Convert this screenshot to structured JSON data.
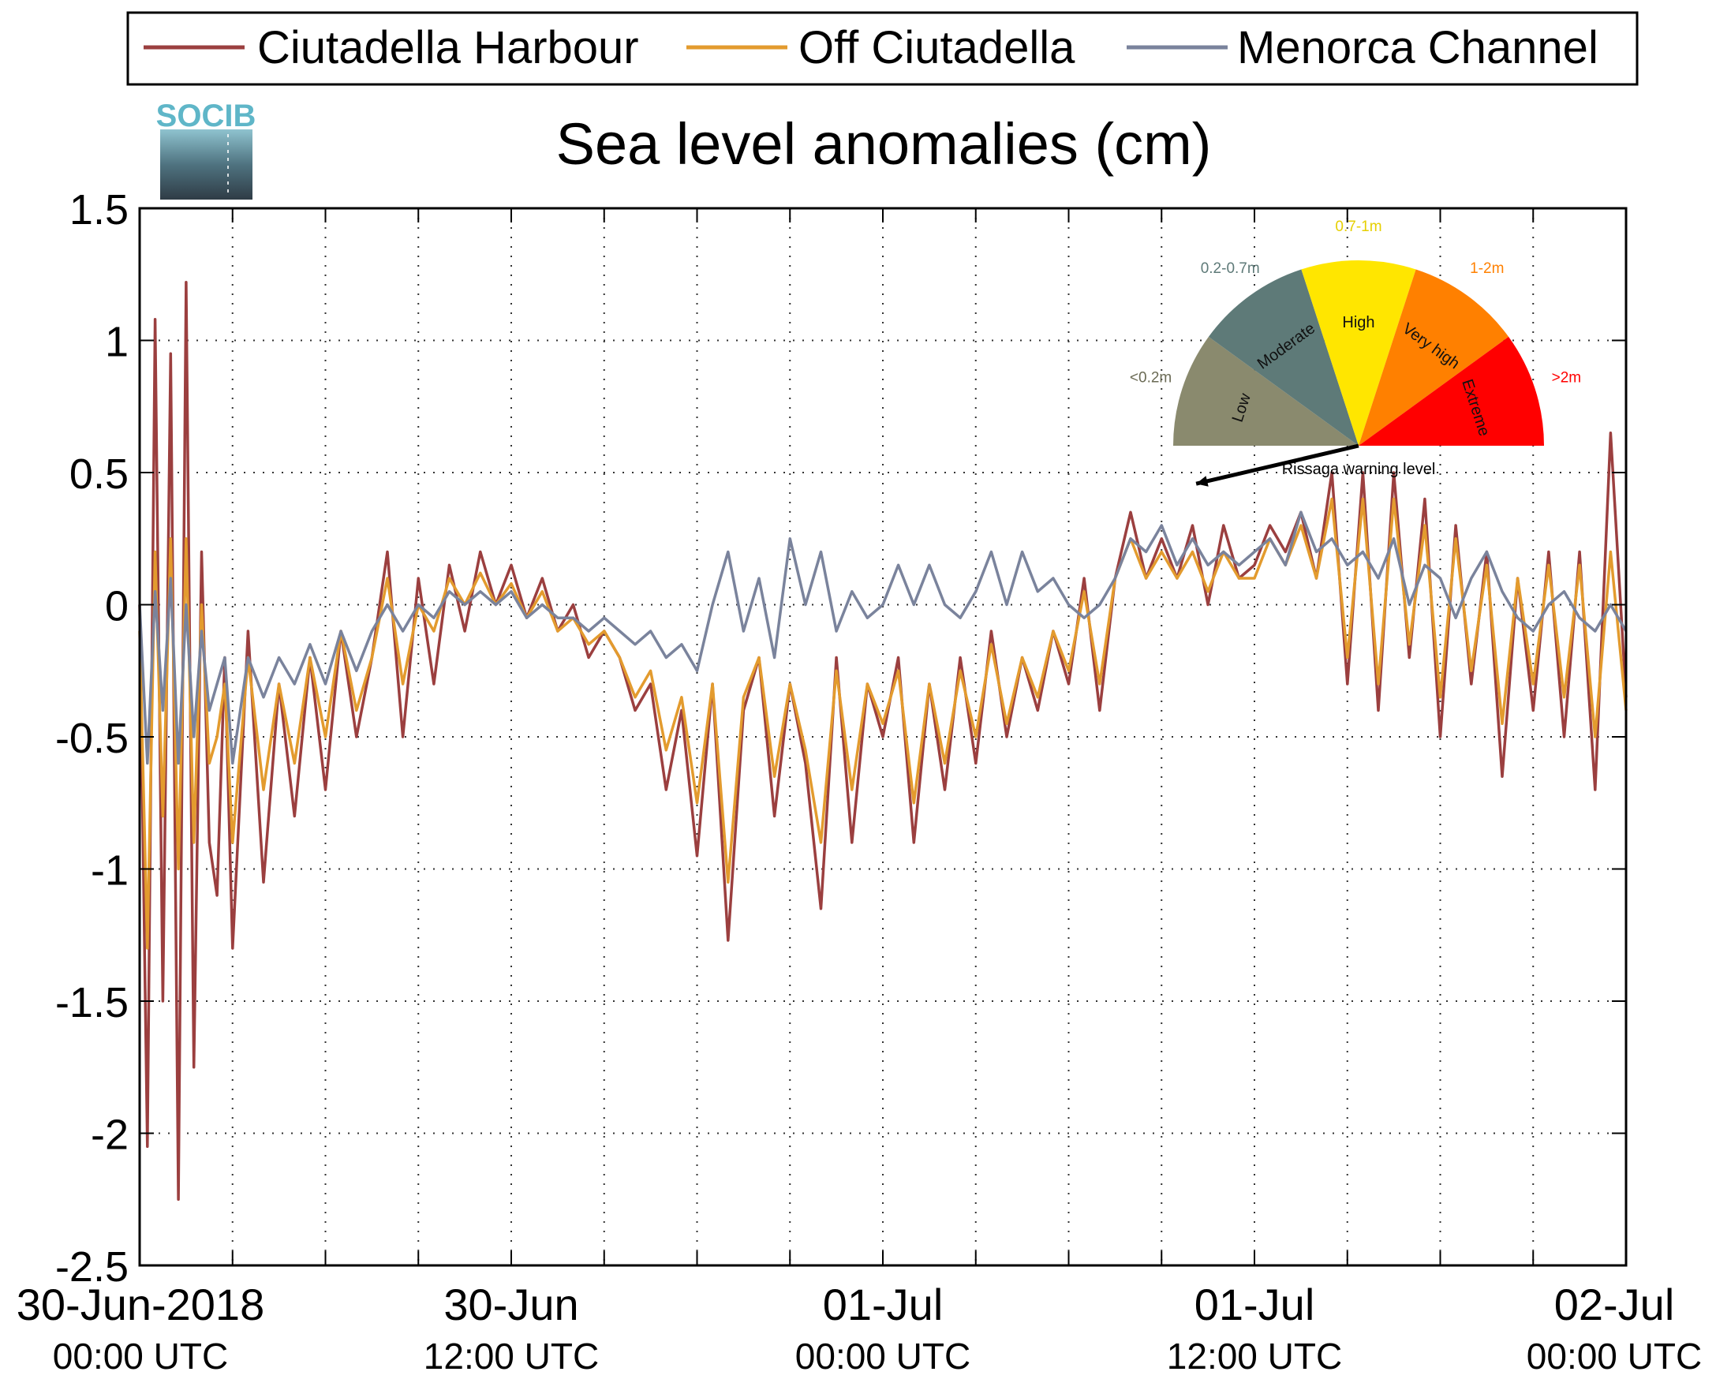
{
  "chart_data": {
    "type": "line",
    "title": "Sea level anomalies (cm)",
    "xlabel": "",
    "ylabel": "",
    "ylim": [
      -2.5,
      1.5
    ],
    "xlim_hours": [
      0,
      48
    ],
    "grid": true,
    "legend_position": "top",
    "yticks": [
      {
        "value": 1.5,
        "label": "1.5"
      },
      {
        "value": 1,
        "label": "1"
      },
      {
        "value": 0.5,
        "label": "0.5"
      },
      {
        "value": 0,
        "label": "0"
      },
      {
        "value": -0.5,
        "label": "-0.5"
      },
      {
        "value": -1,
        "label": "-1"
      },
      {
        "value": -1.5,
        "label": "-1.5"
      },
      {
        "value": -2,
        "label": "-2"
      },
      {
        "value": -2.5,
        "label": "-2.5"
      }
    ],
    "xticks": [
      {
        "hour": 0,
        "label": "30-Jun-2018",
        "sublabel": "00:00 UTC"
      },
      {
        "hour": 12,
        "label": "30-Jun",
        "sublabel": "12:00 UTC"
      },
      {
        "hour": 24,
        "label": "01-Jul",
        "sublabel": "00:00 UTC"
      },
      {
        "hour": 36,
        "label": "01-Jul",
        "sublabel": "12:00 UTC"
      },
      {
        "hour": 48,
        "label": "02-Jul",
        "sublabel": "00:00 UTC"
      }
    ],
    "x_grid_hours": [
      3,
      6,
      9,
      12,
      15,
      18,
      21,
      24,
      27,
      30,
      33,
      36,
      39,
      42,
      45
    ],
    "series": [
      {
        "name": "Ciutadella Harbour",
        "color": "#9b3f3f",
        "x": [
          0,
          0.25,
          0.5,
          0.75,
          1,
          1.25,
          1.5,
          1.75,
          2,
          2.25,
          2.5,
          2.75,
          3,
          3.5,
          4,
          4.5,
          5,
          5.5,
          6,
          6.5,
          7,
          7.5,
          8,
          8.5,
          9,
          9.5,
          10,
          10.5,
          11,
          11.5,
          12,
          12.5,
          13,
          13.5,
          14,
          14.5,
          15,
          15.5,
          16,
          16.5,
          17,
          17.5,
          18,
          18.5,
          19,
          19.5,
          20,
          20.5,
          21,
          21.5,
          22,
          22.5,
          23,
          23.5,
          24,
          24.5,
          25,
          25.5,
          26,
          26.5,
          27,
          27.5,
          28,
          28.5,
          29,
          29.5,
          30,
          30.5,
          31,
          31.5,
          32,
          32.5,
          33,
          33.5,
          34,
          34.5,
          35,
          35.5,
          36,
          36.5,
          37,
          37.5,
          38,
          38.5,
          39,
          39.5,
          40,
          40.5,
          41,
          41.5,
          42,
          42.5,
          43,
          43.5,
          44,
          44.5,
          45,
          45.5,
          46,
          46.5,
          47,
          47.5,
          48
        ],
        "values": [
          0,
          -2.05,
          1.08,
          -1.5,
          0.95,
          -2.25,
          1.22,
          -1.75,
          0.2,
          -0.9,
          -1.1,
          -0.2,
          -1.3,
          -0.1,
          -1.05,
          -0.3,
          -0.8,
          -0.2,
          -0.7,
          -0.1,
          -0.5,
          -0.2,
          0.2,
          -0.5,
          0.1,
          -0.3,
          0.15,
          -0.1,
          0.2,
          0.0,
          0.15,
          -0.05,
          0.1,
          -0.1,
          0.0,
          -0.2,
          -0.1,
          -0.2,
          -0.4,
          -0.3,
          -0.7,
          -0.4,
          -0.95,
          -0.3,
          -1.27,
          -0.4,
          -0.2,
          -0.8,
          -0.3,
          -0.6,
          -1.15,
          -0.2,
          -0.9,
          -0.3,
          -0.5,
          -0.2,
          -0.9,
          -0.3,
          -0.7,
          -0.2,
          -0.6,
          -0.1,
          -0.5,
          -0.2,
          -0.4,
          -0.1,
          -0.3,
          0.1,
          -0.4,
          0.1,
          0.35,
          0.1,
          0.25,
          0.1,
          0.3,
          0.0,
          0.3,
          0.1,
          0.15,
          0.3,
          0.2,
          0.35,
          0.1,
          0.5,
          -0.3,
          0.5,
          -0.4,
          0.5,
          -0.2,
          0.4,
          -0.5,
          0.3,
          -0.3,
          0.2,
          -0.65,
          0.1,
          -0.4,
          0.2,
          -0.5,
          0.2,
          -0.7,
          0.65,
          -0.35
        ]
      },
      {
        "name": "Off Ciutadella",
        "color": "#e39b2e",
        "x": [
          0,
          0.25,
          0.5,
          0.75,
          1,
          1.25,
          1.5,
          1.75,
          2,
          2.25,
          2.5,
          2.75,
          3,
          3.5,
          4,
          4.5,
          5,
          5.5,
          6,
          6.5,
          7,
          7.5,
          8,
          8.5,
          9,
          9.5,
          10,
          10.5,
          11,
          11.5,
          12,
          12.5,
          13,
          13.5,
          14,
          14.5,
          15,
          15.5,
          16,
          16.5,
          17,
          17.5,
          18,
          18.5,
          19,
          19.5,
          20,
          20.5,
          21,
          21.5,
          22,
          22.5,
          23,
          23.5,
          24,
          24.5,
          25,
          25.5,
          26,
          26.5,
          27,
          27.5,
          28,
          28.5,
          29,
          29.5,
          30,
          30.5,
          31,
          31.5,
          32,
          32.5,
          33,
          33.5,
          34,
          34.5,
          35,
          35.5,
          36,
          36.5,
          37,
          37.5,
          38,
          38.5,
          39,
          39.5,
          40,
          40.5,
          41,
          41.5,
          42,
          42.5,
          43,
          43.5,
          44,
          44.5,
          45,
          45.5,
          46,
          46.5,
          47,
          47.5,
          48
        ],
        "values": [
          -0.1,
          -1.3,
          0.2,
          -0.8,
          0.25,
          -1.0,
          0.25,
          -0.9,
          0.0,
          -0.6,
          -0.5,
          -0.3,
          -0.9,
          -0.2,
          -0.7,
          -0.3,
          -0.6,
          -0.2,
          -0.5,
          -0.1,
          -0.4,
          -0.2,
          0.1,
          -0.3,
          0.0,
          -0.1,
          0.1,
          0.0,
          0.12,
          0.0,
          0.08,
          -0.05,
          0.05,
          -0.1,
          -0.05,
          -0.15,
          -0.1,
          -0.2,
          -0.35,
          -0.25,
          -0.55,
          -0.35,
          -0.75,
          -0.3,
          -1.05,
          -0.35,
          -0.2,
          -0.65,
          -0.3,
          -0.55,
          -0.9,
          -0.25,
          -0.7,
          -0.3,
          -0.45,
          -0.25,
          -0.75,
          -0.3,
          -0.6,
          -0.25,
          -0.5,
          -0.15,
          -0.45,
          -0.2,
          -0.35,
          -0.1,
          -0.25,
          0.05,
          -0.3,
          0.1,
          0.25,
          0.1,
          0.2,
          0.1,
          0.2,
          0.05,
          0.2,
          0.1,
          0.1,
          0.25,
          0.15,
          0.3,
          0.1,
          0.4,
          -0.2,
          0.4,
          -0.3,
          0.4,
          -0.15,
          0.3,
          -0.35,
          0.25,
          -0.25,
          0.15,
          -0.45,
          0.1,
          -0.3,
          0.15,
          -0.35,
          0.15,
          -0.5,
          0.2,
          -0.4
        ]
      },
      {
        "name": "Menorca Channel",
        "color": "#7a839c",
        "x": [
          0,
          0.25,
          0.5,
          0.75,
          1,
          1.25,
          1.5,
          1.75,
          2,
          2.25,
          2.5,
          2.75,
          3,
          3.5,
          4,
          4.5,
          5,
          5.5,
          6,
          6.5,
          7,
          7.5,
          8,
          8.5,
          9,
          9.5,
          10,
          10.5,
          11,
          11.5,
          12,
          12.5,
          13,
          13.5,
          14,
          14.5,
          15,
          15.5,
          16,
          16.5,
          17,
          17.5,
          18,
          18.5,
          19,
          19.5,
          20,
          20.5,
          21,
          21.5,
          22,
          22.5,
          23,
          23.5,
          24,
          24.5,
          25,
          25.5,
          26,
          26.5,
          27,
          27.5,
          28,
          28.5,
          29,
          29.5,
          30,
          30.5,
          31,
          31.5,
          32,
          32.5,
          33,
          33.5,
          34,
          34.5,
          35,
          35.5,
          36,
          36.5,
          37,
          37.5,
          38,
          38.5,
          39,
          39.5,
          40,
          40.5,
          41,
          41.5,
          42,
          42.5,
          43,
          43.5,
          44,
          44.5,
          45,
          45.5,
          46,
          46.5,
          47,
          47.5,
          48
        ],
        "values": [
          0.0,
          -0.6,
          0.05,
          -0.4,
          0.1,
          -0.6,
          0.0,
          -0.5,
          -0.1,
          -0.4,
          -0.3,
          -0.2,
          -0.6,
          -0.2,
          -0.35,
          -0.2,
          -0.3,
          -0.15,
          -0.3,
          -0.1,
          -0.25,
          -0.1,
          0.0,
          -0.1,
          0.0,
          -0.05,
          0.05,
          0.0,
          0.05,
          0.0,
          0.05,
          -0.05,
          0.0,
          -0.05,
          -0.05,
          -0.1,
          -0.05,
          -0.1,
          -0.15,
          -0.1,
          -0.2,
          -0.15,
          -0.25,
          0.0,
          0.2,
          -0.1,
          0.1,
          -0.2,
          0.25,
          0.0,
          0.2,
          -0.1,
          0.05,
          -0.05,
          0.0,
          0.15,
          0.0,
          0.15,
          0.0,
          -0.05,
          0.05,
          0.2,
          0.0,
          0.2,
          0.05,
          0.1,
          0.0,
          -0.05,
          0.0,
          0.1,
          0.25,
          0.2,
          0.3,
          0.15,
          0.25,
          0.15,
          0.2,
          0.15,
          0.2,
          0.25,
          0.15,
          0.35,
          0.2,
          0.25,
          0.15,
          0.2,
          0.1,
          0.25,
          0.0,
          0.15,
          0.1,
          -0.05,
          0.1,
          0.2,
          0.05,
          -0.05,
          -0.1,
          0.0,
          0.05,
          -0.05,
          -0.1,
          0.0,
          -0.1
        ]
      }
    ]
  },
  "logo": {
    "text": "SOCIB"
  },
  "gauge": {
    "caption": "Rissaga warning level",
    "segments": [
      {
        "label": "Low",
        "range": "<0.2m",
        "color": "#8a8a6e",
        "range_color": "#6b6b55"
      },
      {
        "label": "Moderate",
        "range": "0.2-0.7m",
        "color": "#5e7a78",
        "range_color": "#5e7a78"
      },
      {
        "label": "High",
        "range": "0.7-1m",
        "color": "#ffe600",
        "range_color": "#e6cf00"
      },
      {
        "label": "Very high",
        "range": "1-2m",
        "color": "#ff8000",
        "range_color": "#ff8000"
      },
      {
        "label": "Extreme",
        "range": ">2m",
        "color": "#ff0000",
        "range_color": "#ff0000"
      }
    ],
    "needle_level": "Low"
  }
}
